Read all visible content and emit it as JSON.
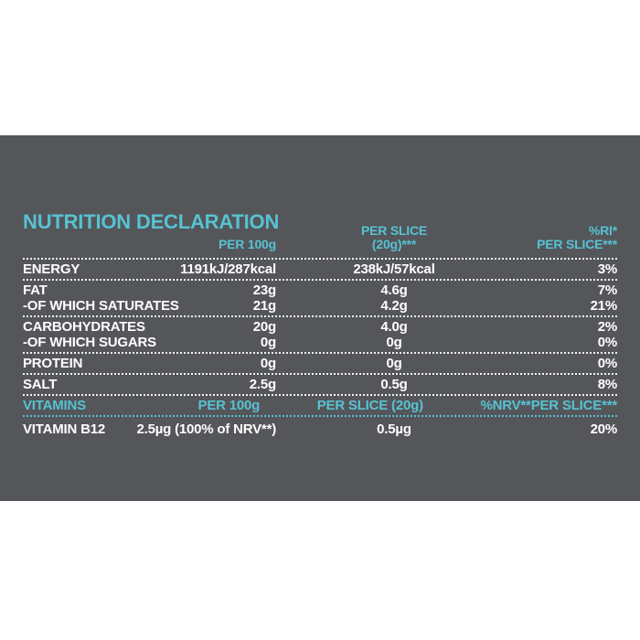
{
  "colors": {
    "page_background": "#ffffff",
    "panel_background": "#54565a",
    "accent_teal": "#57c2d2",
    "body_text": "#ffffff"
  },
  "header": {
    "title": "NUTRITION DECLARATION",
    "col_per100g": "PER 100g",
    "col_perslice_line1": "PER SLICE",
    "col_perslice_line2": "(20g)***",
    "col_ri_line1": "%RI*",
    "col_ri_line2": "PER SLICE***"
  },
  "table": {
    "groups": [
      {
        "rows": [
          {
            "label": "ENERGY",
            "per100g": "1191kJ/287kcal",
            "per_slice": "238kJ/57kcal",
            "ri": "3%"
          }
        ]
      },
      {
        "rows": [
          {
            "label": "FAT",
            "per100g": "23g",
            "per_slice": "4.6g",
            "ri": "7%"
          },
          {
            "label": "-OF WHICH SATURATES",
            "per100g": "21g",
            "per_slice": "4.2g",
            "ri": "21%"
          }
        ]
      },
      {
        "rows": [
          {
            "label": "CARBOHYDRATES",
            "per100g": "20g",
            "per_slice": "4.0g",
            "ri": "2%"
          },
          {
            "label": "-OF WHICH SUGARS",
            "per100g": "0g",
            "per_slice": "0g",
            "ri": "0%"
          }
        ]
      },
      {
        "rows": [
          {
            "label": "PROTEIN",
            "per100g": "0g",
            "per_slice": "0g",
            "ri": "0%"
          }
        ]
      },
      {
        "rows": [
          {
            "label": "SALT",
            "per100g": "2.5g",
            "per_slice": "0.5g",
            "ri": "8%"
          }
        ]
      }
    ],
    "vitamins_header": {
      "label": "VITAMINS",
      "per100g": "PER 100g",
      "per_slice": "PER SLICE (20g)",
      "ri": "%NRV**PER SLICE***"
    },
    "vitamins_rows": [
      {
        "label": "VITAMIN B12",
        "per100g": "2.5µg (100% of NRV**)",
        "per_slice": "0.5µg",
        "ri": "20%"
      }
    ]
  }
}
